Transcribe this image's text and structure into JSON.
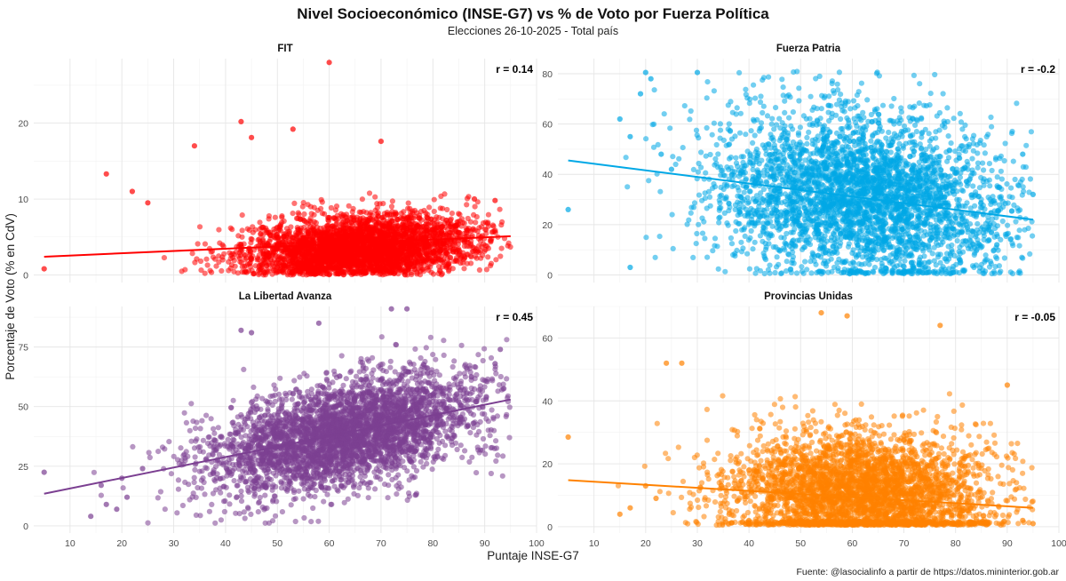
{
  "title": "Nivel Socioeconómico (INSE-G7) vs % de Voto por Fuerza Política",
  "subtitle": "Elecciones 26-10-2025 - Total país",
  "xlabel": "Puntaje INSE-G7",
  "ylabel": "Porcentaje de Voto (% en CdV)",
  "caption": "Fuente: @lasocialinfo a partir de https://datos.mininterior.gob.ar",
  "chart_data": [
    {
      "type": "scatter",
      "title": "FIT",
      "r_label": "r = 0.14",
      "color": "#ff0000",
      "xlim": [
        3,
        100
      ],
      "ylim": [
        -1,
        28.5
      ],
      "x_ticks": [
        10,
        20,
        30,
        40,
        50,
        60,
        70,
        80,
        90,
        100
      ],
      "y_ticks": [
        0,
        10,
        20
      ],
      "trend": [
        [
          5,
          2.4
        ],
        [
          95,
          5.1
        ]
      ],
      "cloud": {
        "x_mean": 66,
        "x_sd": 11,
        "y_intercept": 0.6,
        "y_slope": 0.045,
        "y_sd": 2.2,
        "y_min": 0,
        "y_max": 12.5,
        "n": 3400
      },
      "notable_points": [
        [
          60,
          28.0
        ],
        [
          43,
          20.2
        ],
        [
          45,
          18.1
        ],
        [
          53,
          19.2
        ],
        [
          34,
          17.0
        ],
        [
          70,
          17.6
        ],
        [
          17,
          13.3
        ],
        [
          5,
          0.8
        ],
        [
          25,
          9.5
        ],
        [
          22,
          11.0
        ],
        [
          92,
          9.8
        ],
        [
          88,
          10.0
        ]
      ]
    },
    {
      "type": "scatter",
      "title": "Fuerza Patria",
      "r_label": "r = -0.2",
      "color": "#00a8e6",
      "xlim": [
        3,
        100
      ],
      "ylim": [
        -3,
        86
      ],
      "x_ticks": [
        10,
        20,
        30,
        40,
        50,
        60,
        70,
        80,
        90,
        100
      ],
      "y_ticks": [
        0,
        20,
        40,
        60,
        80
      ],
      "trend": [
        [
          5,
          45.5
        ],
        [
          95,
          22.0
        ]
      ],
      "cloud": {
        "x_mean": 62,
        "x_sd": 14,
        "y_intercept": 46,
        "y_slope": -0.24,
        "y_sd": 17,
        "y_min": 0.5,
        "y_max": 81,
        "n": 3600
      },
      "notable_points": [
        [
          5,
          26.0
        ],
        [
          17,
          3.0
        ],
        [
          19,
          72.0
        ],
        [
          20,
          80.5
        ],
        [
          21,
          78.0
        ],
        [
          15,
          62.0
        ],
        [
          17,
          55.0
        ],
        [
          23,
          48.0
        ],
        [
          25,
          42.0
        ],
        [
          30,
          80.5
        ],
        [
          93,
          48.0
        ],
        [
          95,
          32.0
        ],
        [
          88,
          12.0
        ]
      ]
    },
    {
      "type": "scatter",
      "title": "La Libertad Avanza",
      "r_label": "r = 0.45",
      "color": "#7b3f91",
      "xlim": [
        3,
        100
      ],
      "ylim": [
        -3,
        92
      ],
      "x_ticks": [
        10,
        20,
        30,
        40,
        50,
        60,
        70,
        80,
        90,
        100
      ],
      "y_ticks": [
        0,
        25,
        50,
        75
      ],
      "trend": [
        [
          5,
          13.5
        ],
        [
          95,
          53.0
        ]
      ],
      "cloud": {
        "x_mean": 63,
        "x_sd": 13,
        "y_intercept": 11,
        "y_slope": 0.44,
        "y_sd": 11,
        "y_min": 1,
        "y_max": 80,
        "n": 3800
      },
      "notable_points": [
        [
          5,
          22.5
        ],
        [
          14,
          4.0
        ],
        [
          16,
          17.0
        ],
        [
          17,
          9.0
        ],
        [
          19,
          7.0
        ],
        [
          21,
          12.0
        ],
        [
          20,
          20.0
        ],
        [
          24,
          24.0
        ],
        [
          43,
          82.0
        ],
        [
          45,
          81.0
        ],
        [
          58,
          85.0
        ],
        [
          72,
          91.0
        ],
        [
          75,
          91.0
        ],
        [
          92,
          68.0
        ],
        [
          93,
          74.0
        ]
      ]
    },
    {
      "type": "scatter",
      "title": "Provincias Unidas",
      "r_label": "r = -0.05",
      "color": "#ff8200",
      "xlim": [
        3,
        100
      ],
      "ylim": [
        -2,
        70
      ],
      "x_ticks": [
        10,
        20,
        30,
        40,
        50,
        60,
        70,
        80,
        90,
        100
      ],
      "y_ticks": [
        0,
        20,
        40,
        60
      ],
      "trend": [
        [
          5,
          14.8
        ],
        [
          95,
          6.0
        ]
      ],
      "cloud": {
        "x_mean": 62,
        "x_sd": 13,
        "y_intercept": 14,
        "y_slope": -0.07,
        "y_sd": 10,
        "y_min": 0.5,
        "y_max": 62,
        "n": 3600
      },
      "notable_points": [
        [
          5,
          28.5
        ],
        [
          15,
          4.0
        ],
        [
          17,
          6.0
        ],
        [
          20,
          13.0
        ],
        [
          22,
          9.0
        ],
        [
          24,
          52.0
        ],
        [
          27,
          52.0
        ],
        [
          54,
          68.0
        ],
        [
          59,
          67.0
        ],
        [
          77,
          64.0
        ],
        [
          93,
          2.0
        ],
        [
          95,
          1.0
        ],
        [
          90,
          45.0
        ]
      ]
    }
  ]
}
